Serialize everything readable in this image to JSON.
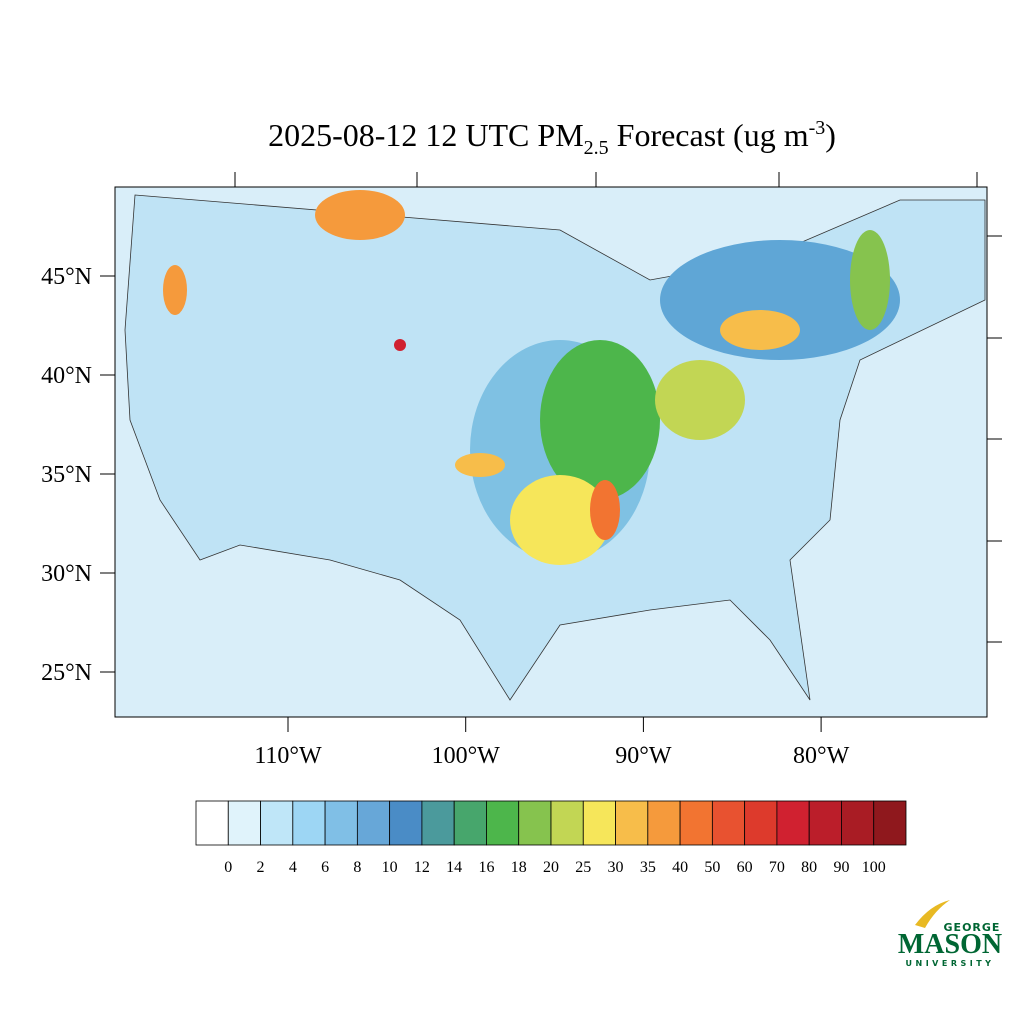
{
  "title": {
    "main": "2025-08-12 12 UTC PM",
    "subscript": "2.5",
    "middle": " Forecast (ug m",
    "superscript": "-3",
    "end": ")"
  },
  "map": {
    "lat_ticks": [
      {
        "value": 45,
        "label": "45°N"
      },
      {
        "value": 40,
        "label": "40°N"
      },
      {
        "value": 35,
        "label": "35°N"
      },
      {
        "value": 30,
        "label": "30°N"
      },
      {
        "value": 25,
        "label": "25°N"
      }
    ],
    "lon_ticks": [
      {
        "value": -110,
        "label": "110°W"
      },
      {
        "value": -100,
        "label": "100°W"
      },
      {
        "value": -90,
        "label": "90°W"
      },
      {
        "value": -80,
        "label": "80°W"
      }
    ]
  },
  "colorbar": {
    "levels": [
      0,
      2,
      4,
      6,
      8,
      10,
      12,
      14,
      16,
      18,
      20,
      25,
      30,
      35,
      40,
      50,
      60,
      70,
      80,
      90,
      100
    ],
    "colors": [
      "#ffffff",
      "#e0f3fb",
      "#bfe6f8",
      "#9dd6f4",
      "#80bfe6",
      "#67a7d8",
      "#4a8cc6",
      "#4b9a9c",
      "#47a66c",
      "#4db64b",
      "#86c34e",
      "#c2d654",
      "#f6e65a",
      "#f7bd4a",
      "#f59a3c",
      "#f27431",
      "#e85230",
      "#dd3a2c",
      "#d02130",
      "#bb1e2a",
      "#a91c24",
      "#8f181d"
    ]
  },
  "logo": {
    "top": "GEORGE",
    "name": "MASON",
    "bottom": "UNIVERSITY"
  }
}
